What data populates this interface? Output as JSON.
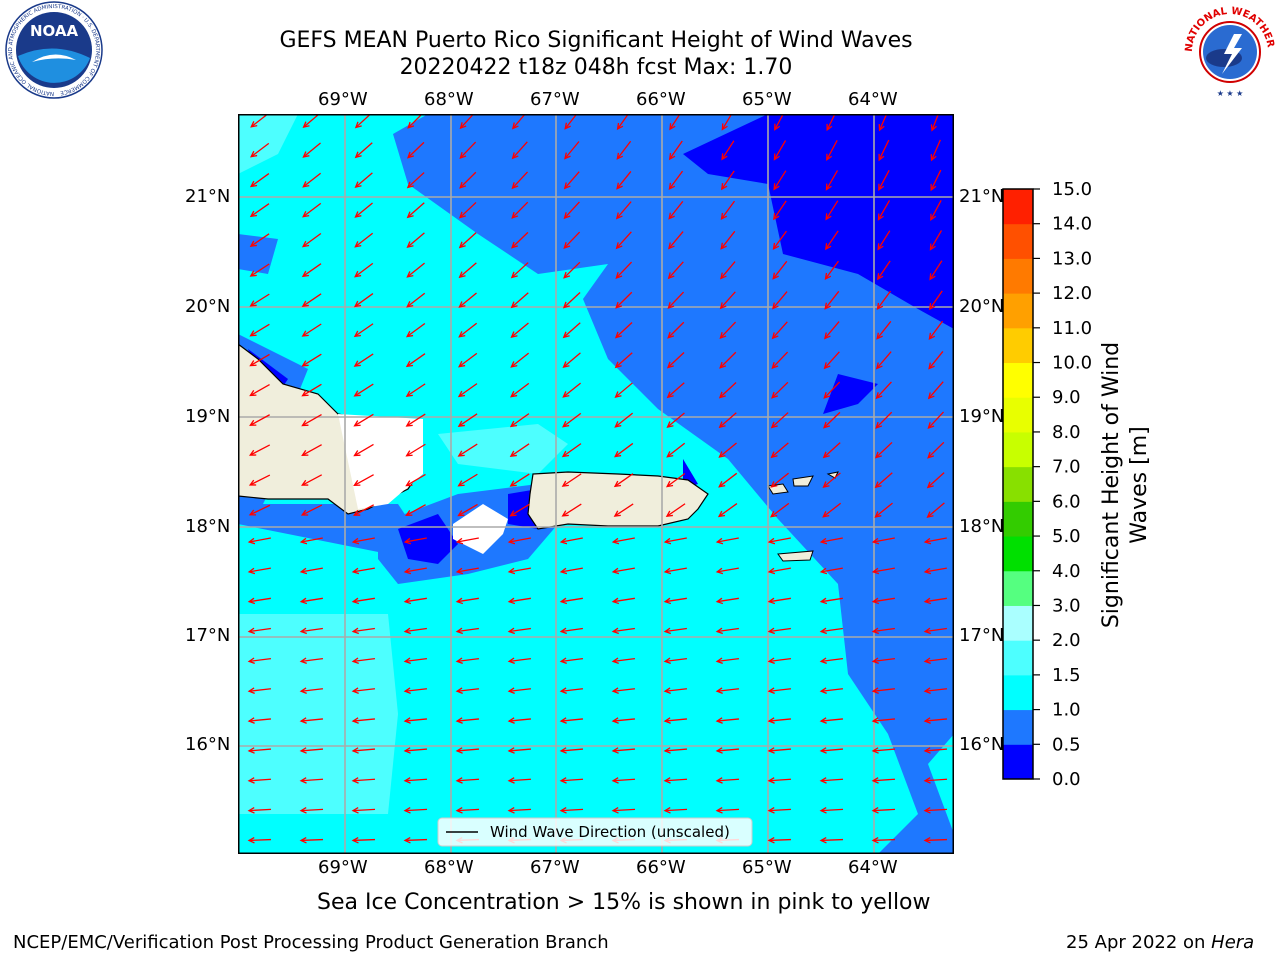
{
  "header": {
    "title_line1": "GEFS MEAN Puerto Rico Significant Height of Wind Waves",
    "title_line2": "20220422 t18z 048h fcst   Max: 1.70"
  },
  "logos": {
    "noaa_text": "NOAA",
    "noaa_ring": "NATIONAL OCEANIC AND ATMOSPHERIC ADMINISTRATION · U.S. DEPARTMENT OF COMMERCE",
    "nws_ring": "NATIONAL WEATHER SERVICE"
  },
  "map": {
    "lon_labels": [
      "69°W",
      "68°W",
      "67°W",
      "66°W",
      "65°W",
      "64°W"
    ],
    "lat_labels": [
      "21°N",
      "20°N",
      "19°N",
      "18°N",
      "17°N",
      "16°N"
    ],
    "legend_label": "Wind Wave Direction (unscaled)",
    "arrow_color": "#ff0000"
  },
  "colorbar": {
    "label_line1": "Significant Height of Wind",
    "label_line2": "Waves [m]",
    "ticks": [
      "0.0",
      "0.5",
      "1.0",
      "1.5",
      "2.0",
      "3.0",
      "4.0",
      "5.0",
      "6.0",
      "7.0",
      "8.0",
      "9.0",
      "10.0",
      "11.0",
      "12.0",
      "13.0",
      "14.0",
      "15.0"
    ],
    "colors": [
      "#0000ff",
      "#1e78ff",
      "#00ffff",
      "#4dffff",
      "#aaffff",
      "#55ff80",
      "#00e000",
      "#33cc00",
      "#88e000",
      "#c8ff00",
      "#e8ff00",
      "#ffff00",
      "#ffcc00",
      "#ffa000",
      "#ff7a00",
      "#ff5000",
      "#ff2000"
    ]
  },
  "notes": {
    "sea_ice": "Sea Ice Concentration > 15% is shown in pink to yellow"
  },
  "footer": {
    "left": "NCEP/EMC/Verification Post Processing Product Generation Branch",
    "right_prefix": "25 Apr 2022 on ",
    "right_host": "Hera"
  }
}
